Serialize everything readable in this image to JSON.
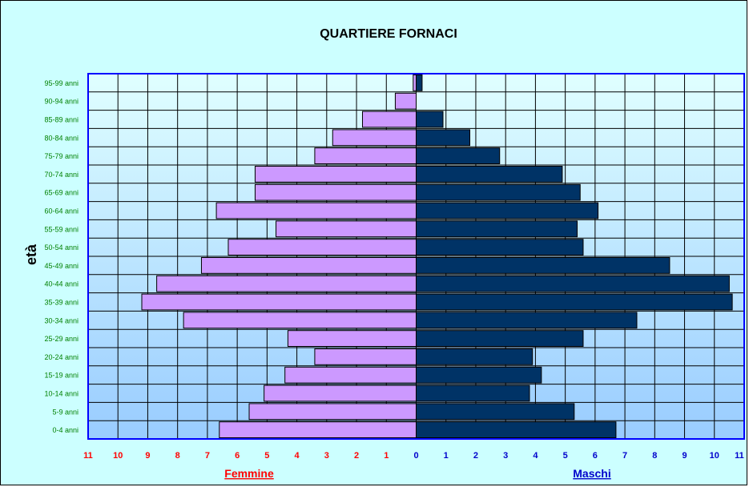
{
  "chart_data": {
    "type": "bar",
    "orientation": "horizontal-pyramid",
    "title": "QUARTIERE FORNACI",
    "ylabel": "età",
    "xlim": [
      -11,
      11
    ],
    "categories": [
      "0-4 anni",
      "5-9 anni",
      "10-14 anni",
      "15-19 anni",
      "20-24 anni",
      "25-29 anni",
      "30-34 anni",
      "35-39 anni",
      "40-44 anni",
      "45-49 anni",
      "50-54 anni",
      "55-59 anni",
      "60-64 anni",
      "65-69 anni",
      "70-74 anni",
      "75-79 anni",
      "80-84 anni",
      "85-89 anni",
      "90-94 anni",
      "95-99 anni"
    ],
    "x_ticks_left": [
      "11",
      "10",
      "9",
      "8",
      "7",
      "6",
      "5",
      "4",
      "3",
      "2",
      "1"
    ],
    "x_ticks_right": [
      "0",
      "1",
      "2",
      "3",
      "4",
      "5",
      "6",
      "7",
      "8",
      "9",
      "10",
      "11"
    ],
    "series": [
      {
        "name": "Femmine",
        "side": "left",
        "color": "#cc99ff",
        "values": [
          6.6,
          5.6,
          5.1,
          4.4,
          3.4,
          4.3,
          7.8,
          9.2,
          8.7,
          7.2,
          6.3,
          4.7,
          6.7,
          5.4,
          5.4,
          3.4,
          2.8,
          1.8,
          0.7,
          0.1
        ]
      },
      {
        "name": "Maschi",
        "side": "right",
        "color": "#003366",
        "values": [
          6.7,
          5.3,
          3.8,
          4.2,
          3.9,
          5.6,
          7.4,
          10.6,
          10.5,
          8.5,
          5.6,
          5.4,
          6.1,
          5.5,
          4.9,
          2.8,
          1.8,
          0.9,
          0.0,
          0.2
        ]
      }
    ],
    "left_label": "Femmine",
    "right_label": "Maschi",
    "left_label_color": "#ff0000",
    "right_label_color": "#0000cc",
    "category_label_color": "#008000",
    "grid": true,
    "plot_background": [
      "#e0ffff",
      "#99ccff"
    ],
    "border_color": "#0000ff"
  }
}
